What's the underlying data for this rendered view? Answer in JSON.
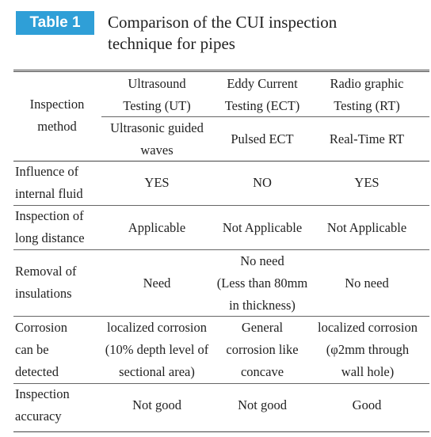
{
  "badge": "Table 1",
  "title": [
    "Comparison of the CUI inspection",
    "technique for pipes"
  ],
  "header": {
    "row_label": [
      "Inspection",
      "method"
    ],
    "columns": [
      [
        "Ultrasound",
        "Testing (UT)"
      ],
      [
        "Eddy Current",
        "Testing (ECT)"
      ],
      [
        "Radio graphic",
        "Testing (RT)"
      ]
    ],
    "methods": [
      [
        "Ultrasonic guided",
        "waves"
      ],
      [
        "Pulsed ECT"
      ],
      [
        "Real-Time RT"
      ]
    ]
  },
  "rows": [
    {
      "label": [
        "Influence of",
        "internal fluid"
      ],
      "cells": [
        [
          "YES"
        ],
        [
          "NO"
        ],
        [
          "YES"
        ]
      ]
    },
    {
      "label": [
        "Inspection of",
        "long distance"
      ],
      "cells": [
        [
          "Applicable"
        ],
        [
          "Not Applicable"
        ],
        [
          "Not Applicable"
        ]
      ]
    },
    {
      "label": [
        "Removal of",
        "insulations"
      ],
      "cells": [
        [
          "Need"
        ],
        [
          "No need",
          "(Less than 80mm",
          "in thickness)"
        ],
        [
          "No need"
        ]
      ]
    },
    {
      "label": [
        "Corrosion",
        "can be",
        "detected"
      ],
      "cells": [
        [
          "localized corrosion",
          "(10% depth level of",
          "sectional area)"
        ],
        [
          "General",
          "corrosion like",
          "concave"
        ],
        [
          "localized corrosion",
          "(φ2mm through",
          "wall hole)"
        ]
      ]
    },
    {
      "label": [
        "Inspection",
        "accuracy"
      ],
      "cells": [
        [
          "Not good"
        ],
        [
          "Not good"
        ],
        [
          "Good"
        ]
      ]
    }
  ]
}
